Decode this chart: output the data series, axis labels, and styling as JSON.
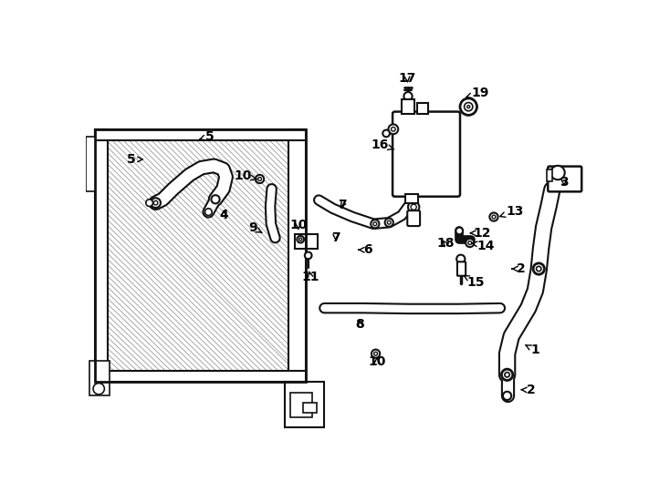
{
  "bg_color": "#ffffff",
  "lc": "#111111",
  "fig_width": 7.34,
  "fig_height": 5.4,
  "dpi": 100,
  "callouts": [
    [
      "1",
      634,
      415,
      625,
      407
    ],
    [
      "2",
      628,
      472,
      615,
      471
    ],
    [
      "2",
      614,
      299,
      606,
      299
    ],
    [
      "3",
      681,
      175,
      681,
      185
    ],
    [
      "4",
      197,
      222,
      197,
      211
    ],
    [
      "5",
      170,
      110,
      161,
      115
    ],
    [
      "5",
      72,
      143,
      87,
      143
    ],
    [
      "6",
      396,
      272,
      384,
      272
    ],
    [
      "7",
      356,
      255,
      356,
      263
    ],
    [
      "7",
      365,
      208,
      360,
      215
    ],
    [
      "8",
      390,
      378,
      390,
      366
    ],
    [
      "9",
      244,
      240,
      252,
      248
    ],
    [
      "10",
      303,
      236,
      303,
      248
    ],
    [
      "10",
      237,
      167,
      248,
      172
    ],
    [
      "10",
      415,
      431,
      415,
      420
    ],
    [
      "11",
      320,
      310,
      317,
      298
    ],
    [
      "12",
      552,
      248,
      546,
      248
    ],
    [
      "13",
      598,
      217,
      588,
      225
    ],
    [
      "14",
      557,
      266,
      548,
      262
    ],
    [
      "15",
      543,
      318,
      537,
      308
    ],
    [
      "16",
      432,
      122,
      443,
      130
    ],
    [
      "17",
      458,
      28,
      459,
      38
    ],
    [
      "18",
      512,
      263,
      508,
      258
    ],
    [
      "19",
      549,
      48,
      540,
      55
    ]
  ]
}
